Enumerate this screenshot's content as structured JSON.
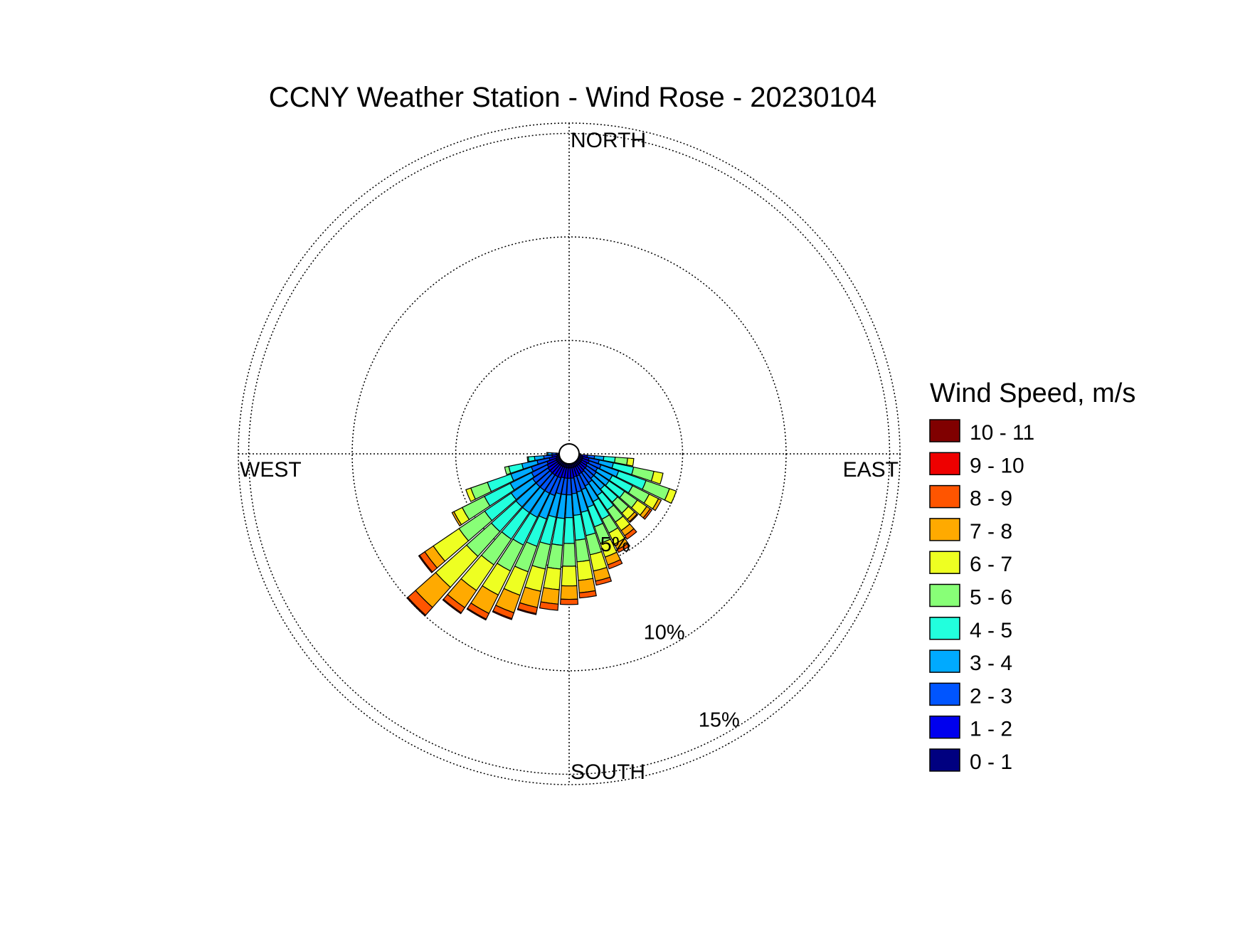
{
  "chart_data": {
    "type": "wind_rose",
    "title": "CCNY Weather Station - Wind Rose - 20230104",
    "directions": {
      "north": "NORTH",
      "south": "SOUTH",
      "east": "EAST",
      "west": "WEST"
    },
    "radial_unit": "percent frequency",
    "radial_rings": [
      {
        "value": 5,
        "label": "5%"
      },
      {
        "value": 10,
        "label": "10%"
      },
      {
        "value": 15,
        "label": "15%"
      }
    ],
    "radial_max": 15.5,
    "legend": {
      "title": "Wind Speed, m/s",
      "bins": [
        {
          "label": "10 - 11",
          "color": "#800000"
        },
        {
          "label": "9 - 10",
          "color": "#ee0000"
        },
        {
          "label": "8 - 9",
          "color": "#ff5500"
        },
        {
          "label": "7 - 8",
          "color": "#ffaa00"
        },
        {
          "label": "6 - 7",
          "color": "#eeff22"
        },
        {
          "label": "5 - 6",
          "color": "#88ff77"
        },
        {
          "label": "4 - 5",
          "color": "#22ffdd"
        },
        {
          "label": "3 - 4",
          "color": "#00aaff"
        },
        {
          "label": "2 - 3",
          "color": "#0055ff"
        },
        {
          "label": "1 - 2",
          "color": "#0000ee"
        },
        {
          "label": "0 - 1",
          "color": "#000080"
        }
      ]
    },
    "sector_width_deg": 7.5,
    "bin_order": [
      "0 - 1",
      "1 - 2",
      "2 - 3",
      "3 - 4",
      "4 - 5",
      "5 - 6",
      "6 - 7",
      "7 - 8",
      "8 - 9",
      "9 - 10",
      "10 - 11"
    ],
    "sectors": [
      {
        "direction_deg": 97.5,
        "values": [
          0.15,
          0.25,
          0.35,
          0.45,
          0.55,
          0.6,
          0.3,
          0,
          0,
          0,
          0
        ]
      },
      {
        "direction_deg": 105,
        "values": [
          0.2,
          0.3,
          0.5,
          0.7,
          1.0,
          1.0,
          0.45,
          0,
          0,
          0,
          0
        ]
      },
      {
        "direction_deg": 112.5,
        "values": [
          0.2,
          0.35,
          0.6,
          0.9,
          1.4,
          1.2,
          0.35,
          0,
          0,
          0,
          0
        ]
      },
      {
        "direction_deg": 120,
        "values": [
          0.2,
          0.3,
          0.55,
          0.8,
          1.1,
          0.9,
          0.5,
          0.15,
          0,
          0,
          0
        ]
      },
      {
        "direction_deg": 127.5,
        "values": [
          0.2,
          0.35,
          0.55,
          0.75,
          0.9,
          0.75,
          0.55,
          0.2,
          0.1,
          0,
          0
        ]
      },
      {
        "direction_deg": 135,
        "values": [
          0.2,
          0.35,
          0.55,
          0.7,
          0.85,
          0.7,
          0.4,
          0.15,
          0.05,
          0,
          0
        ]
      },
      {
        "direction_deg": 142.5,
        "values": [
          0.2,
          0.4,
          0.6,
          0.75,
          0.85,
          0.7,
          0.5,
          0.3,
          0.2,
          0,
          0
        ]
      },
      {
        "direction_deg": 150,
        "values": [
          0.2,
          0.4,
          0.65,
          0.85,
          0.95,
          0.75,
          0.6,
          0.3,
          0.15,
          0,
          0
        ]
      },
      {
        "direction_deg": 157.5,
        "values": [
          0.2,
          0.45,
          0.7,
          0.9,
          1.0,
          0.85,
          0.7,
          0.4,
          0.2,
          0,
          0
        ]
      },
      {
        "direction_deg": 165,
        "values": [
          0.2,
          0.45,
          0.75,
          1.0,
          1.15,
          0.95,
          0.8,
          0.5,
          0.2,
          0,
          0
        ]
      },
      {
        "direction_deg": 172.5,
        "values": [
          0.2,
          0.5,
          0.75,
          1.05,
          1.2,
          1.05,
          0.9,
          0.6,
          0.25,
          0,
          0
        ]
      },
      {
        "direction_deg": 180,
        "values": [
          0.2,
          0.5,
          0.8,
          1.1,
          1.25,
          1.1,
          0.95,
          0.65,
          0.25,
          0,
          0
        ]
      },
      {
        "direction_deg": 187.5,
        "values": [
          0.2,
          0.5,
          0.8,
          1.15,
          1.3,
          1.15,
          1.0,
          0.7,
          0.3,
          0,
          0
        ]
      },
      {
        "direction_deg": 195,
        "values": [
          0.2,
          0.5,
          0.8,
          1.15,
          1.35,
          1.2,
          1.1,
          0.8,
          0.3,
          0.05,
          0
        ]
      },
      {
        "direction_deg": 202.5,
        "values": [
          0.2,
          0.55,
          0.9,
          1.2,
          1.4,
          1.3,
          1.2,
          0.9,
          0.3,
          0.05,
          0
        ]
      },
      {
        "direction_deg": 210,
        "values": [
          0.2,
          0.55,
          0.9,
          1.3,
          1.5,
          1.4,
          1.3,
          1.0,
          0.3,
          0.05,
          0
        ]
      },
      {
        "direction_deg": 217.5,
        "values": [
          0.2,
          0.55,
          0.9,
          1.3,
          1.55,
          1.5,
          1.5,
          1.0,
          0.3,
          0.05,
          0
        ]
      },
      {
        "direction_deg": 225,
        "values": [
          0.2,
          0.55,
          0.9,
          1.3,
          1.6,
          1.6,
          2.0,
          1.3,
          0.5,
          0.05,
          0
        ]
      },
      {
        "direction_deg": 232.5,
        "values": [
          0.2,
          0.55,
          0.9,
          1.25,
          1.55,
          1.5,
          1.5,
          0.5,
          0.3,
          0.05,
          0
        ]
      },
      {
        "direction_deg": 240,
        "values": [
          0.2,
          0.5,
          0.85,
          1.15,
          1.4,
          1.2,
          0.45,
          0.1,
          0,
          0,
          0
        ]
      },
      {
        "direction_deg": 247.5,
        "values": [
          0.2,
          0.45,
          0.8,
          1.05,
          1.2,
          0.85,
          0.25,
          0,
          0,
          0,
          0
        ]
      },
      {
        "direction_deg": 255,
        "values": [
          0.15,
          0.35,
          0.6,
          0.75,
          0.65,
          0.2,
          0,
          0,
          0,
          0,
          0
        ]
      },
      {
        "direction_deg": 262.5,
        "values": [
          0.1,
          0.25,
          0.4,
          0.45,
          0.3,
          0.05,
          0,
          0,
          0,
          0,
          0
        ]
      },
      {
        "direction_deg": 270,
        "values": [
          0.05,
          0.1,
          0.2,
          0.2,
          0.05,
          0,
          0,
          0,
          0,
          0,
          0
        ]
      }
    ]
  }
}
